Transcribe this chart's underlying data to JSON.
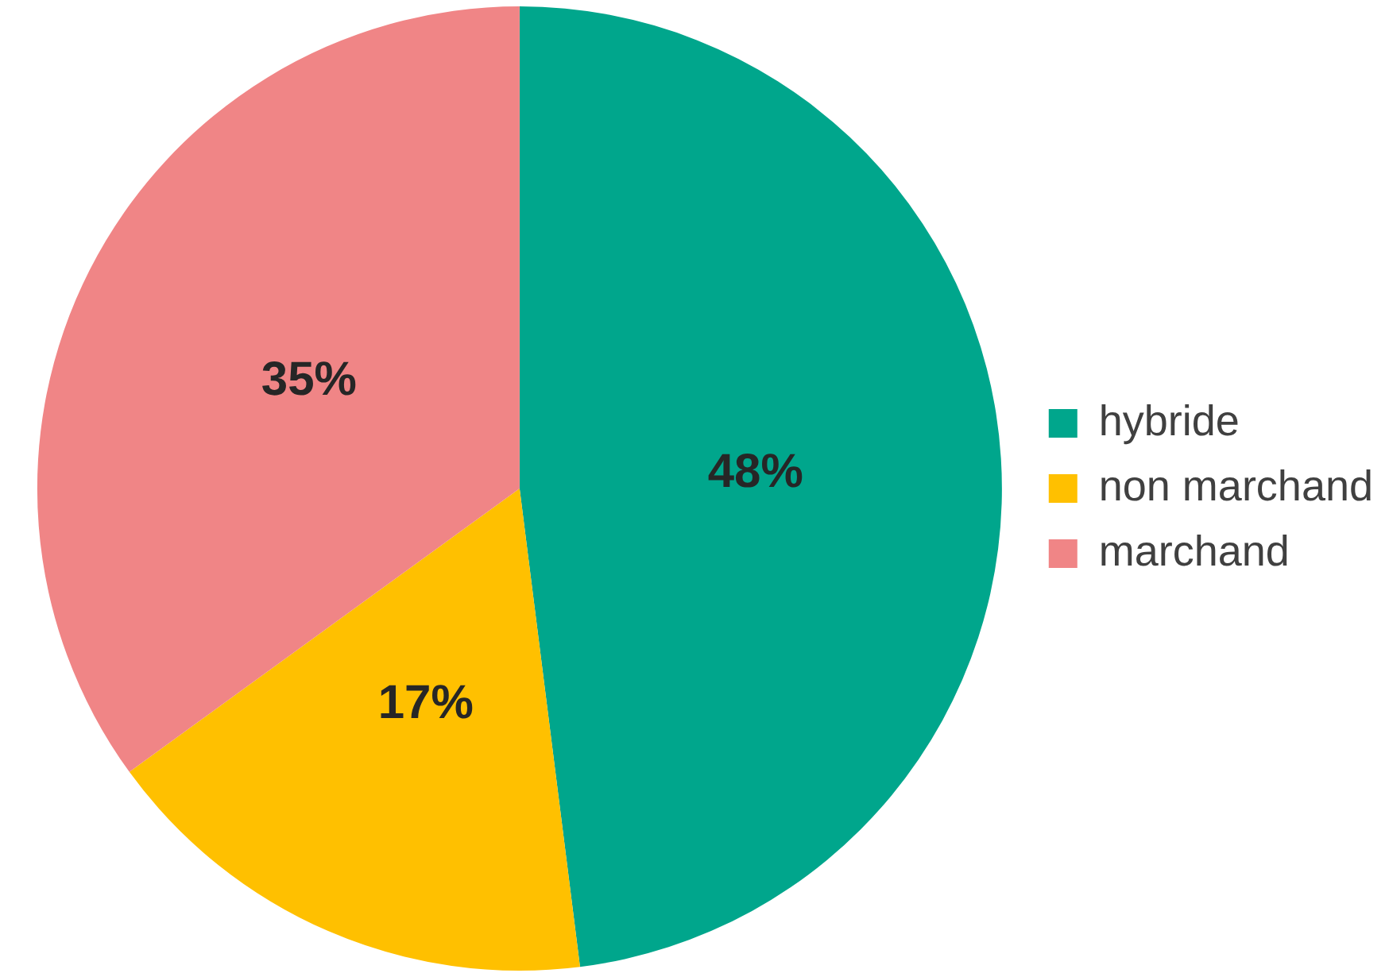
{
  "chart_data": {
    "type": "pie",
    "categories": [
      "hybride",
      "non marchand",
      "marchand"
    ],
    "values": [
      48,
      17,
      35
    ],
    "colors": [
      "#00a68c",
      "#ffc000",
      "#f08586"
    ],
    "value_labels": [
      "48%",
      "17%",
      "35%"
    ],
    "legend": "right"
  }
}
